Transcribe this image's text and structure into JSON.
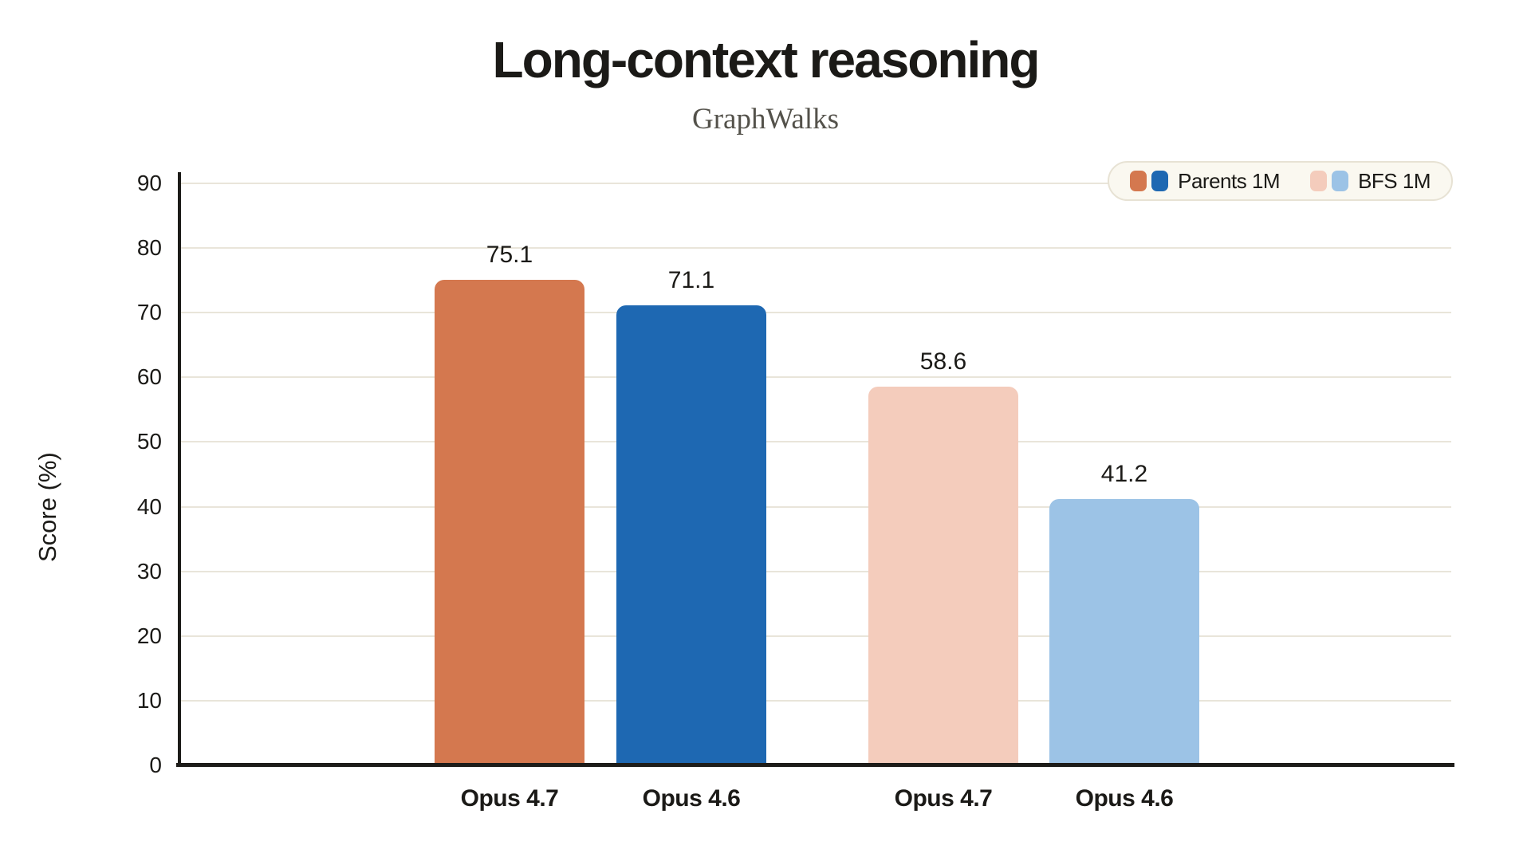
{
  "chart_data": {
    "type": "bar",
    "title": "Long-context reasoning",
    "subtitle": "GraphWalks",
    "ylabel": "Score (%)",
    "ylim": [
      0,
      90
    ],
    "yticks": [
      0,
      10,
      20,
      30,
      40,
      50,
      60,
      70,
      80,
      90
    ],
    "grid": true,
    "legend_position": "top-right",
    "groups": [
      {
        "series": "Parents 1M",
        "category": "Opus 4.7",
        "value": 75.1,
        "value_label": "75.1",
        "color": "#d4784f"
      },
      {
        "series": "Parents 1M",
        "category": "Opus 4.6",
        "value": 71.1,
        "value_label": "71.1",
        "color": "#1e68b2"
      },
      {
        "series": "BFS 1M",
        "category": "Opus 4.7",
        "value": 58.6,
        "value_label": "58.6",
        "color": "#f4ccbc"
      },
      {
        "series": "BFS 1M",
        "category": "Opus 4.6",
        "value": 41.2,
        "value_label": "41.2",
        "color": "#9cc3e6"
      }
    ],
    "legend": [
      {
        "label": "Parents 1M",
        "colors": [
          "#d4784f",
          "#1e68b2"
        ]
      },
      {
        "label": "BFS 1M",
        "colors": [
          "#f4ccbc",
          "#9cc3e6"
        ]
      }
    ],
    "colors": {
      "axis": "#1d1c19",
      "gridline": "#e9e5da",
      "text": "#1b1a17",
      "subtitle_text": "#54524b",
      "legend_background": "#faf8f0",
      "legend_border": "#e7e2d4"
    }
  }
}
